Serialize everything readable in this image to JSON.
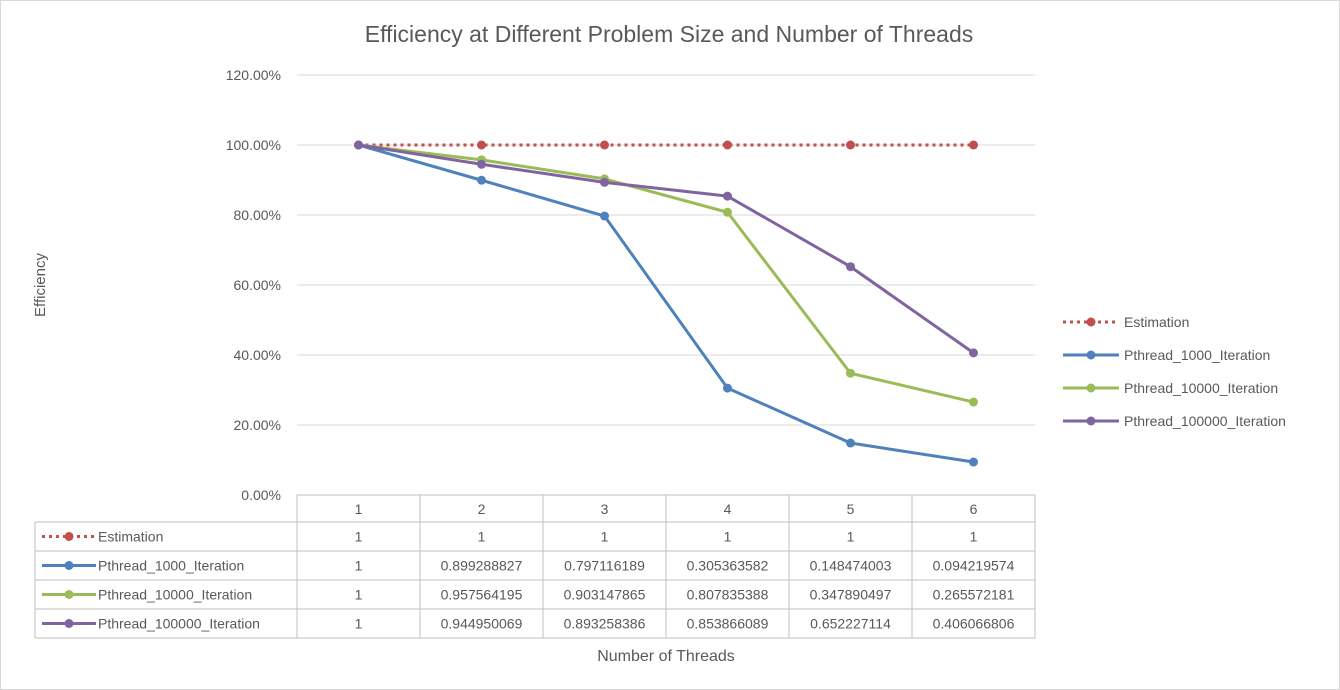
{
  "chart_data": {
    "type": "line",
    "title": "Efficiency at Different Problem Size and Number of Threads",
    "xlabel": "Number of Threads",
    "ylabel": "Efficiency",
    "categories": [
      "1",
      "2",
      "3",
      "4",
      "5",
      "6"
    ],
    "y_ticks": [
      "0.00%",
      "20.00%",
      "40.00%",
      "60.00%",
      "80.00%",
      "100.00%",
      "120.00%"
    ],
    "ylim": [
      0,
      1.2
    ],
    "grid": true,
    "legend_position": "right",
    "data_table": true,
    "series": [
      {
        "name": "Estimation",
        "color": "#c0504d",
        "dash": "dotted",
        "values": [
          1,
          1,
          1,
          1,
          1,
          1
        ],
        "table_values": [
          "1",
          "1",
          "1",
          "1",
          "1",
          "1"
        ]
      },
      {
        "name": "Pthread_1000_Iteration",
        "color": "#4f81bd",
        "dash": "solid",
        "values": [
          1,
          0.899288827,
          0.797116189,
          0.305363582,
          0.148474003,
          0.094219574
        ],
        "table_values": [
          "1",
          "0.899288827",
          "0.797116189",
          "0.305363582",
          "0.148474003",
          "0.094219574"
        ]
      },
      {
        "name": "Pthread_10000_Iteration",
        "color": "#9bbb59",
        "dash": "solid",
        "values": [
          1,
          0.957564195,
          0.903147865,
          0.807835388,
          0.347890497,
          0.265572181
        ],
        "table_values": [
          "1",
          "0.957564195",
          "0.903147865",
          "0.807835388",
          "0.347890497",
          "0.265572181"
        ]
      },
      {
        "name": "Pthread_100000_Iteration",
        "color": "#8064a2",
        "dash": "solid",
        "values": [
          1,
          0.944950069,
          0.893258386,
          0.853866089,
          0.652227114,
          0.406066806
        ],
        "table_values": [
          "1",
          "0.944950069",
          "0.893258386",
          "0.853866089",
          "0.652227114",
          "0.406066806"
        ]
      }
    ]
  }
}
